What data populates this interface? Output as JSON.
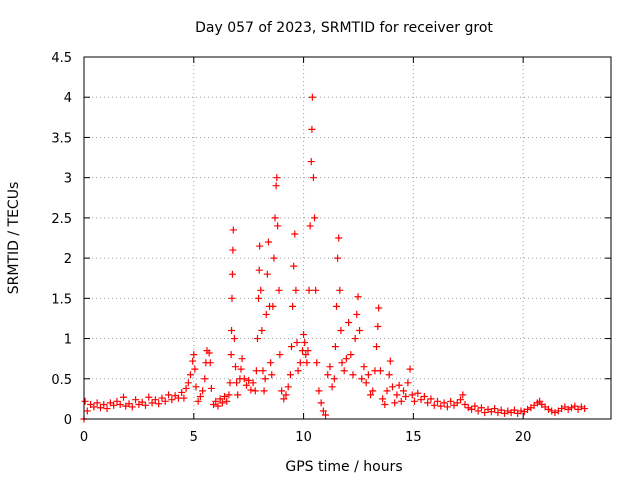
{
  "chart_data": {
    "type": "scatter",
    "title": "Day 057 of 2023, SRMTID for receiver grot",
    "xlabel": "GPS time / hours",
    "ylabel": "SRMTID / TECUs",
    "xlim": [
      0,
      24
    ],
    "ylim": [
      0,
      4.5
    ],
    "xticks": [
      0,
      5,
      10,
      15,
      20
    ],
    "yticks": [
      0,
      0.5,
      1,
      1.5,
      2,
      2.5,
      3,
      3.5,
      4,
      4.5
    ],
    "ytick_labels": [
      "0",
      "0.5",
      "1",
      "1.5",
      "2",
      "2.5",
      "3",
      "3.5",
      "4",
      "4.5"
    ],
    "grid": true,
    "marker": "+",
    "series": [
      {
        "name": "SRMTID",
        "color": "#ff0000",
        "points": [
          [
            0.0,
            0.0
          ],
          [
            0.05,
            0.22
          ],
          [
            0.15,
            0.1
          ],
          [
            0.3,
            0.18
          ],
          [
            0.45,
            0.15
          ],
          [
            0.6,
            0.2
          ],
          [
            0.75,
            0.14
          ],
          [
            0.9,
            0.18
          ],
          [
            1.05,
            0.13
          ],
          [
            1.2,
            0.2
          ],
          [
            1.35,
            0.17
          ],
          [
            1.5,
            0.22
          ],
          [
            1.65,
            0.18
          ],
          [
            1.8,
            0.27
          ],
          [
            1.9,
            0.16
          ],
          [
            2.05,
            0.19
          ],
          [
            2.2,
            0.15
          ],
          [
            2.35,
            0.24
          ],
          [
            2.5,
            0.18
          ],
          [
            2.65,
            0.21
          ],
          [
            2.8,
            0.17
          ],
          [
            2.95,
            0.27
          ],
          [
            3.1,
            0.2
          ],
          [
            3.25,
            0.24
          ],
          [
            3.4,
            0.19
          ],
          [
            3.55,
            0.26
          ],
          [
            3.7,
            0.22
          ],
          [
            3.85,
            0.3
          ],
          [
            4.0,
            0.24
          ],
          [
            4.15,
            0.29
          ],
          [
            4.3,
            0.26
          ],
          [
            4.45,
            0.33
          ],
          [
            4.55,
            0.26
          ],
          [
            4.65,
            0.38
          ],
          [
            4.75,
            0.45
          ],
          [
            4.85,
            0.55
          ],
          [
            4.95,
            0.72
          ],
          [
            5.0,
            0.8
          ],
          [
            5.05,
            0.62
          ],
          [
            5.1,
            0.4
          ],
          [
            5.2,
            0.22
          ],
          [
            5.3,
            0.28
          ],
          [
            5.4,
            0.35
          ],
          [
            5.5,
            0.5
          ],
          [
            5.55,
            0.7
          ],
          [
            5.6,
            0.85
          ],
          [
            5.7,
            0.82
          ],
          [
            5.75,
            0.7
          ],
          [
            5.8,
            0.38
          ],
          [
            5.9,
            0.18
          ],
          [
            6.0,
            0.22
          ],
          [
            6.1,
            0.16
          ],
          [
            6.2,
            0.25
          ],
          [
            6.3,
            0.2
          ],
          [
            6.4,
            0.28
          ],
          [
            6.5,
            0.22
          ],
          [
            6.6,
            0.3
          ],
          [
            6.65,
            0.45
          ],
          [
            6.7,
            0.8
          ],
          [
            6.72,
            1.1
          ],
          [
            6.74,
            1.5
          ],
          [
            6.76,
            1.8
          ],
          [
            6.78,
            2.1
          ],
          [
            6.8,
            2.35
          ],
          [
            6.85,
            1.0
          ],
          [
            6.9,
            0.65
          ],
          [
            6.95,
            0.45
          ],
          [
            7.0,
            0.3
          ],
          [
            7.1,
            0.5
          ],
          [
            7.15,
            0.62
          ],
          [
            7.2,
            0.75
          ],
          [
            7.3,
            0.5
          ],
          [
            7.4,
            0.42
          ],
          [
            7.5,
            0.48
          ],
          [
            7.6,
            0.36
          ],
          [
            7.7,
            0.45
          ],
          [
            7.8,
            0.35
          ],
          [
            7.85,
            0.6
          ],
          [
            7.9,
            1.0
          ],
          [
            7.95,
            1.5
          ],
          [
            7.98,
            1.85
          ],
          [
            8.0,
            2.15
          ],
          [
            8.05,
            1.6
          ],
          [
            8.1,
            1.1
          ],
          [
            8.15,
            0.6
          ],
          [
            8.2,
            0.35
          ],
          [
            8.25,
            0.5
          ],
          [
            8.3,
            1.3
          ],
          [
            8.35,
            1.8
          ],
          [
            8.4,
            2.2
          ],
          [
            8.45,
            1.4
          ],
          [
            8.5,
            0.7
          ],
          [
            8.55,
            0.55
          ],
          [
            8.6,
            1.4
          ],
          [
            8.65,
            2.0
          ],
          [
            8.7,
            2.5
          ],
          [
            8.75,
            2.9
          ],
          [
            8.78,
            3.0
          ],
          [
            8.82,
            2.4
          ],
          [
            8.88,
            1.6
          ],
          [
            8.92,
            0.8
          ],
          [
            9.0,
            0.35
          ],
          [
            9.1,
            0.25
          ],
          [
            9.2,
            0.3
          ],
          [
            9.3,
            0.4
          ],
          [
            9.4,
            0.55
          ],
          [
            9.45,
            0.9
          ],
          [
            9.5,
            1.4
          ],
          [
            9.55,
            1.9
          ],
          [
            9.6,
            2.3
          ],
          [
            9.65,
            1.6
          ],
          [
            9.7,
            0.95
          ],
          [
            9.75,
            0.6
          ],
          [
            9.85,
            0.7
          ],
          [
            9.95,
            0.85
          ],
          [
            10.0,
            1.05
          ],
          [
            10.05,
            0.95
          ],
          [
            10.1,
            0.8
          ],
          [
            10.15,
            0.7
          ],
          [
            10.2,
            0.85
          ],
          [
            10.25,
            1.6
          ],
          [
            10.3,
            2.4
          ],
          [
            10.35,
            3.2
          ],
          [
            10.38,
            3.6
          ],
          [
            10.4,
            4.0
          ],
          [
            10.45,
            3.0
          ],
          [
            10.5,
            2.5
          ],
          [
            10.55,
            1.6
          ],
          [
            10.6,
            0.7
          ],
          [
            10.7,
            0.35
          ],
          [
            10.8,
            0.2
          ],
          [
            10.9,
            0.1
          ],
          [
            11.0,
            0.05
          ],
          [
            11.1,
            0.55
          ],
          [
            11.2,
            0.65
          ],
          [
            11.3,
            0.4
          ],
          [
            11.4,
            0.5
          ],
          [
            11.45,
            0.9
          ],
          [
            11.5,
            1.4
          ],
          [
            11.55,
            2.0
          ],
          [
            11.6,
            2.25
          ],
          [
            11.65,
            1.6
          ],
          [
            11.7,
            1.1
          ],
          [
            11.75,
            0.7
          ],
          [
            11.85,
            0.6
          ],
          [
            11.95,
            0.75
          ],
          [
            12.05,
            1.2
          ],
          [
            12.15,
            0.8
          ],
          [
            12.25,
            0.55
          ],
          [
            12.35,
            1.0
          ],
          [
            12.42,
            1.3
          ],
          [
            12.48,
            1.52
          ],
          [
            12.55,
            1.1
          ],
          [
            12.65,
            0.5
          ],
          [
            12.75,
            0.65
          ],
          [
            12.85,
            0.45
          ],
          [
            12.95,
            0.55
          ],
          [
            13.05,
            0.3
          ],
          [
            13.15,
            0.35
          ],
          [
            13.25,
            0.6
          ],
          [
            13.32,
            0.9
          ],
          [
            13.38,
            1.15
          ],
          [
            13.42,
            1.38
          ],
          [
            13.5,
            0.6
          ],
          [
            13.6,
            0.25
          ],
          [
            13.7,
            0.18
          ],
          [
            13.8,
            0.35
          ],
          [
            13.9,
            0.55
          ],
          [
            13.95,
            0.72
          ],
          [
            14.05,
            0.4
          ],
          [
            14.15,
            0.2
          ],
          [
            14.25,
            0.3
          ],
          [
            14.35,
            0.42
          ],
          [
            14.45,
            0.22
          ],
          [
            14.55,
            0.35
          ],
          [
            14.65,
            0.28
          ],
          [
            14.75,
            0.45
          ],
          [
            14.85,
            0.62
          ],
          [
            14.95,
            0.3
          ],
          [
            15.05,
            0.22
          ],
          [
            15.2,
            0.32
          ],
          [
            15.35,
            0.24
          ],
          [
            15.5,
            0.28
          ],
          [
            15.65,
            0.2
          ],
          [
            15.8,
            0.25
          ],
          [
            15.95,
            0.17
          ],
          [
            16.1,
            0.22
          ],
          [
            16.25,
            0.16
          ],
          [
            16.4,
            0.2
          ],
          [
            16.55,
            0.15
          ],
          [
            16.7,
            0.22
          ],
          [
            16.85,
            0.17
          ],
          [
            17.0,
            0.2
          ],
          [
            17.15,
            0.24
          ],
          [
            17.25,
            0.3
          ],
          [
            17.35,
            0.18
          ],
          [
            17.5,
            0.14
          ],
          [
            17.65,
            0.12
          ],
          [
            17.8,
            0.16
          ],
          [
            17.95,
            0.1
          ],
          [
            18.1,
            0.14
          ],
          [
            18.25,
            0.08
          ],
          [
            18.4,
            0.12
          ],
          [
            18.55,
            0.09
          ],
          [
            18.7,
            0.13
          ],
          [
            18.85,
            0.08
          ],
          [
            19.0,
            0.11
          ],
          [
            19.15,
            0.07
          ],
          [
            19.3,
            0.1
          ],
          [
            19.45,
            0.08
          ],
          [
            19.6,
            0.11
          ],
          [
            19.75,
            0.07
          ],
          [
            19.9,
            0.1
          ],
          [
            20.05,
            0.09
          ],
          [
            20.2,
            0.12
          ],
          [
            20.35,
            0.14
          ],
          [
            20.5,
            0.17
          ],
          [
            20.65,
            0.2
          ],
          [
            20.75,
            0.22
          ],
          [
            20.85,
            0.18
          ],
          [
            21.0,
            0.15
          ],
          [
            21.15,
            0.12
          ],
          [
            21.3,
            0.1
          ],
          [
            21.45,
            0.08
          ],
          [
            21.6,
            0.1
          ],
          [
            21.75,
            0.13
          ],
          [
            21.9,
            0.15
          ],
          [
            22.05,
            0.12
          ],
          [
            22.2,
            0.14
          ],
          [
            22.35,
            0.16
          ],
          [
            22.5,
            0.12
          ],
          [
            22.65,
            0.15
          ],
          [
            22.8,
            0.13
          ]
        ]
      }
    ]
  }
}
